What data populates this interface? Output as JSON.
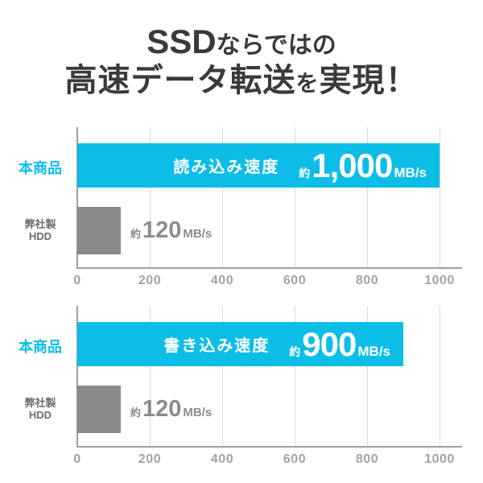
{
  "title": {
    "line1_latin": "SSD",
    "line1_rest": "ならではの",
    "line2_main": "高速データ転送",
    "line2_particle": "を",
    "line2_end": "実現！"
  },
  "axis": {
    "min": 0,
    "max": 1000,
    "ticks": [
      "0",
      "200",
      "400",
      "600",
      "800",
      "1000"
    ]
  },
  "charts": [
    {
      "product_label": "本商品",
      "hdd_label_line1": "弊社製",
      "hdd_label_line2": "HDD",
      "bar_label": "読み込み速度",
      "approx": "約",
      "value": 1000,
      "value_display": "1,000",
      "unit": "MB/s",
      "hdd_approx": "約",
      "hdd_value": 120,
      "hdd_value_display": "120",
      "hdd_unit": "MB/s"
    },
    {
      "product_label": "本商品",
      "hdd_label_line1": "弊社製",
      "hdd_label_line2": "HDD",
      "bar_label": "書き込み速度",
      "approx": "約",
      "value": 900,
      "value_display": "900",
      "unit": "MB/s",
      "hdd_approx": "約",
      "hdd_value": 120,
      "hdd_value_display": "120",
      "hdd_unit": "MB/s"
    }
  ],
  "chart_data": [
    {
      "type": "bar",
      "orientation": "horizontal",
      "title": "読み込み速度",
      "categories": [
        "本商品",
        "弊社製HDD"
      ],
      "values": [
        1000,
        120
      ],
      "value_labels": [
        "約1,000MB/s",
        "約120MB/s"
      ],
      "xlabel": "",
      "ylabel": "",
      "xlim": [
        0,
        1000
      ],
      "xticks": [
        0,
        200,
        400,
        600,
        800,
        1000
      ],
      "grid": true,
      "bar_colors": [
        "#0cbde8",
        "#8a8a8a"
      ]
    },
    {
      "type": "bar",
      "orientation": "horizontal",
      "title": "書き込み速度",
      "categories": [
        "本商品",
        "弊社製HDD"
      ],
      "values": [
        900,
        120
      ],
      "value_labels": [
        "約900MB/s",
        "約120MB/s"
      ],
      "xlabel": "",
      "ylabel": "",
      "xlim": [
        0,
        1000
      ],
      "xticks": [
        0,
        200,
        400,
        600,
        800,
        1000
      ],
      "grid": true,
      "bar_colors": [
        "#0cbde8",
        "#8a8a8a"
      ]
    }
  ],
  "colors": {
    "accent_cyan": "#0cbde8",
    "bar_gray": "#8a8a8a",
    "title_text": "#3a3a3c",
    "hdd_label_gray": "#6d6d6d",
    "hdd_value_gray": "#8c8c8c",
    "tick_gray": "#a3a3a3",
    "gridline": "#d9d9d9",
    "axis_line": "#9e9e9e",
    "bar_text": "#ffffff",
    "background": "#ffffff"
  }
}
